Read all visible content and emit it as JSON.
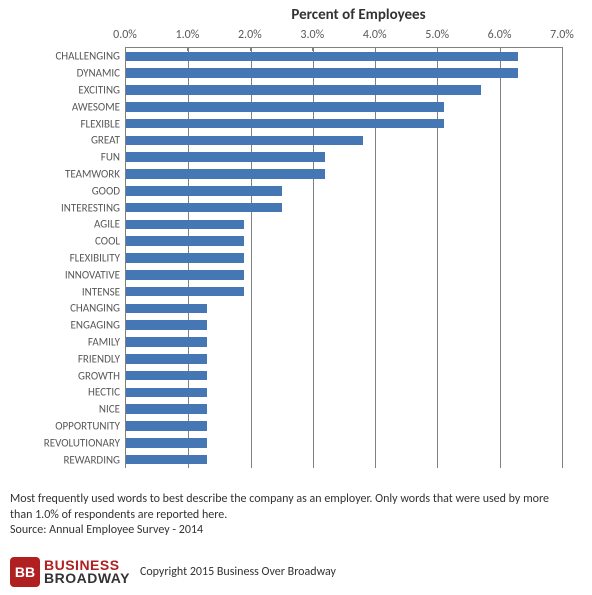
{
  "chart": {
    "type": "bar-horizontal",
    "title": "Percent of Employees",
    "title_fontsize": 15,
    "title_color": "#333333",
    "background_color": "#ffffff",
    "grid_color": "#808080",
    "axis_label_color": "#595959",
    "axis_label_fontsize": 12,
    "category_label_fontsize": 11,
    "bar_color": "#4577b4",
    "bar_fill_ratio": 0.58,
    "xaxis": {
      "min": 0.0,
      "max": 7.0,
      "tick_step": 1.0,
      "ticks": [
        0.0,
        1.0,
        2.0,
        3.0,
        4.0,
        5.0,
        6.0,
        7.0
      ],
      "tick_format": "percent_one_decimal"
    },
    "categories": [
      "CHALLENGING",
      "DYNAMIC",
      "EXCITING",
      "AWESOME",
      "FLEXIBLE",
      "GREAT",
      "FUN",
      "TEAMWORK",
      "GOOD",
      "INTERESTING",
      "AGILE",
      "COOL",
      "FLEXIBILITY",
      "INNOVATIVE",
      "INTENSE",
      "CHANGING",
      "ENGAGING",
      "FAMILY",
      "FRIENDLY",
      "GROWTH",
      "HECTIC",
      "NICE",
      "OPPORTUNITY",
      "REVOLUTIONARY",
      "REWARDING"
    ],
    "values": [
      6.3,
      6.3,
      5.7,
      5.1,
      5.1,
      3.8,
      3.2,
      3.2,
      2.5,
      2.5,
      1.9,
      1.9,
      1.9,
      1.9,
      1.9,
      1.3,
      1.3,
      1.3,
      1.3,
      1.3,
      1.3,
      1.3,
      1.3,
      1.3,
      1.3
    ]
  },
  "caption": {
    "line1": "Most frequently used words to best describe the company as an employer. Only words that were used by more than 1.0% of respondents are reported here.",
    "line2": "Source: Annual Employee Survey - 2014",
    "fontsize": 12,
    "color": "#333333"
  },
  "footer": {
    "logo": {
      "badge_text": "BB",
      "line1": "BUSINESS",
      "line2": "BROADWAY",
      "badge_bg": "#b02020",
      "badge_fg": "#ffffff",
      "line1_color": "#b02020",
      "line2_color": "#333333"
    },
    "copyright": "Copyright 2015 Business Over Broadway"
  }
}
